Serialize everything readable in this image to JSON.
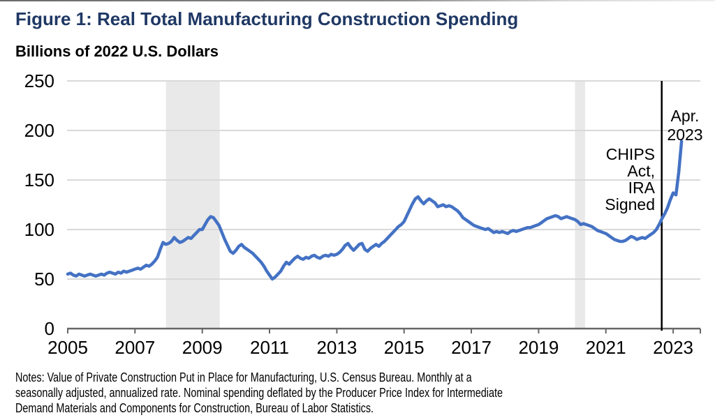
{
  "header": {
    "title": "Figure 1: Real Total Manufacturing Construction Spending",
    "subtitle": "Billions of 2022 U.S. Dollars"
  },
  "chart_data": {
    "type": "line",
    "title": "Figure 1: Real Total Manufacturing Construction Spending",
    "ylabel": "Billions of 2022 U.S. Dollars",
    "xlabel": "",
    "frequency": "monthly",
    "x_start_year": 2005,
    "x_start": "2005-01",
    "x_end": "2023-04",
    "ylim": [
      0,
      250
    ],
    "yticks": [
      0,
      50,
      100,
      150,
      200,
      250
    ],
    "xticks": [
      2005,
      2007,
      2009,
      2011,
      2013,
      2015,
      2017,
      2019,
      2021,
      2023
    ],
    "grid": "horizontal",
    "legend": "none",
    "series_name": "Real total manufacturing construction spending",
    "recession_bands": [
      {
        "start": 2007.92,
        "end": 2009.52
      },
      {
        "start": 2020.08,
        "end": 2020.38
      }
    ],
    "event_line": {
      "year": 2022.66,
      "label": "CHIPS Act, IRA Signed"
    },
    "annotations": {
      "chips": {
        "lines": [
          "CHIPS",
          "Act,",
          "IRA",
          "Signed"
        ]
      },
      "endpoint": {
        "lines": [
          "Apr.",
          "2023"
        ]
      }
    },
    "values_monthly": [
      55,
      56,
      54,
      53,
      55,
      54,
      53,
      54,
      55,
      54,
      53,
      54,
      55,
      54,
      56,
      57,
      56,
      55,
      57,
      56,
      58,
      57,
      58,
      59,
      60,
      61,
      60,
      62,
      64,
      63,
      65,
      68,
      72,
      80,
      87,
      85,
      86,
      88,
      92,
      89,
      87,
      88,
      90,
      92,
      91,
      94,
      97,
      100,
      100,
      105,
      110,
      113,
      112,
      108,
      104,
      97,
      90,
      84,
      78,
      76,
      79,
      83,
      85,
      82,
      80,
      78,
      76,
      73,
      70,
      67,
      63,
      58,
      54,
      50,
      52,
      55,
      58,
      63,
      67,
      65,
      68,
      71,
      73,
      71,
      70,
      72,
      71,
      73,
      74,
      72,
      71,
      73,
      74,
      73,
      75,
      74,
      75,
      77,
      80,
      84,
      86,
      82,
      79,
      82,
      85,
      86,
      80,
      78,
      81,
      83,
      85,
      83,
      86,
      88,
      91,
      94,
      97,
      100,
      103,
      105,
      108,
      114,
      120,
      126,
      131,
      133,
      129,
      126,
      129,
      131,
      129,
      127,
      123,
      124,
      125,
      123,
      124,
      123,
      121,
      119,
      116,
      112,
      110,
      108,
      106,
      104,
      103,
      102,
      101,
      100,
      101,
      99,
      97,
      98,
      97,
      98,
      97,
      96,
      98,
      99,
      98,
      99,
      100,
      101,
      102,
      102,
      103,
      104,
      105,
      107,
      109,
      111,
      112,
      113,
      114,
      113,
      111,
      112,
      113,
      112,
      111,
      110,
      108,
      105,
      106,
      105,
      104,
      103,
      101,
      99,
      98,
      97,
      96,
      94,
      92,
      90,
      89,
      88,
      88,
      89,
      91,
      93,
      92,
      90,
      91,
      92,
      91,
      93,
      95,
      97,
      100,
      105,
      111,
      116,
      122,
      130,
      137,
      135,
      158,
      189
    ]
  },
  "notes": {
    "lines": [
      "Notes: Value of Private Construction Put in Place for Manufacturing, U.S. Census Bureau. Monthly at a",
      "seasonally adjusted, annualized rate. Nominal spending deflated by the Producer Price Index for Intermediate",
      "Demand Materials and Components for Construction, Bureau of Labor Statistics."
    ]
  },
  "colors": {
    "title": "#1f3864",
    "line": "#4472c4",
    "gridline": "#d9d9d9",
    "axis": "#666666",
    "recession_band": "#e9e9e9",
    "event_line": "#000000",
    "text": "#000000"
  }
}
